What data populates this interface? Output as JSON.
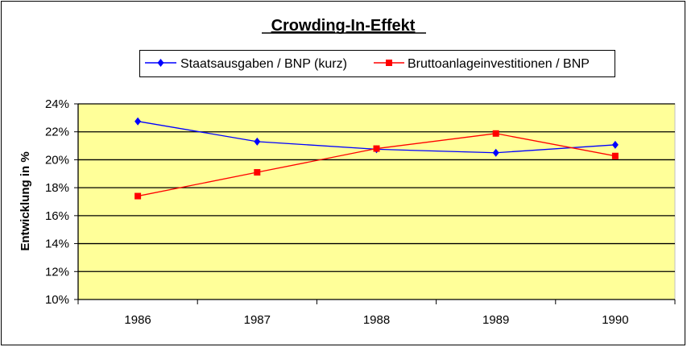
{
  "chart_data": {
    "type": "line",
    "title": "Crowding-In-Effekt",
    "xlabel": "",
    "ylabel": "Entwicklung in %",
    "categories": [
      "1986",
      "1987",
      "1988",
      "1989",
      "1990"
    ],
    "ylim": [
      10,
      24
    ],
    "yticks": [
      10,
      12,
      14,
      16,
      18,
      20,
      22,
      24
    ],
    "ytick_labels": [
      "10%",
      "12%",
      "14%",
      "16%",
      "18%",
      "20%",
      "22%",
      "24%"
    ],
    "grid": true,
    "legend_position": "top",
    "plot_background": "#FFFF99",
    "series": [
      {
        "name": "Staatsausgaben / BNP (kurz)",
        "color": "#0000FF",
        "marker": "diamond",
        "values": [
          22.75,
          21.3,
          20.75,
          20.5,
          21.07
        ]
      },
      {
        "name": "Bruttoanlageinvestitionen / BNP",
        "color": "#FF0000",
        "marker": "square",
        "values": [
          17.4,
          19.1,
          20.8,
          21.88,
          20.27
        ]
      }
    ]
  }
}
